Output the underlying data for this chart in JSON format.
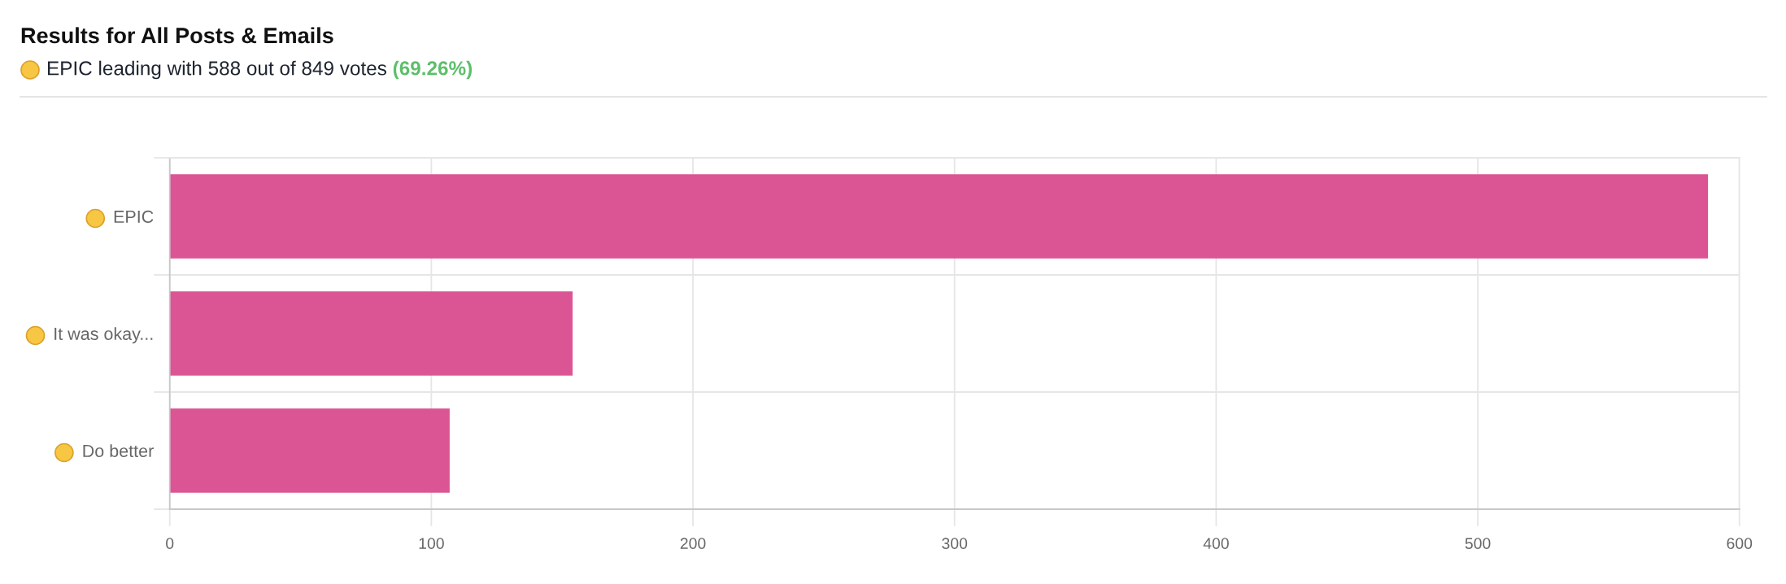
{
  "chart_data": {
    "type": "bar",
    "orientation": "horizontal",
    "title": "Results for All Posts & Emails",
    "subtitle": "EPIC leading with 588 out of 849 votes",
    "annotations": [
      "(69.26%)"
    ],
    "categories": [
      "EPIC",
      "It was okay...",
      "Do better"
    ],
    "values": [
      588,
      154,
      107
    ],
    "color": "#db5594",
    "xlim": [
      0,
      600
    ],
    "xticks": [
      0,
      100,
      200,
      300,
      400,
      500,
      600
    ],
    "grid": true
  }
}
